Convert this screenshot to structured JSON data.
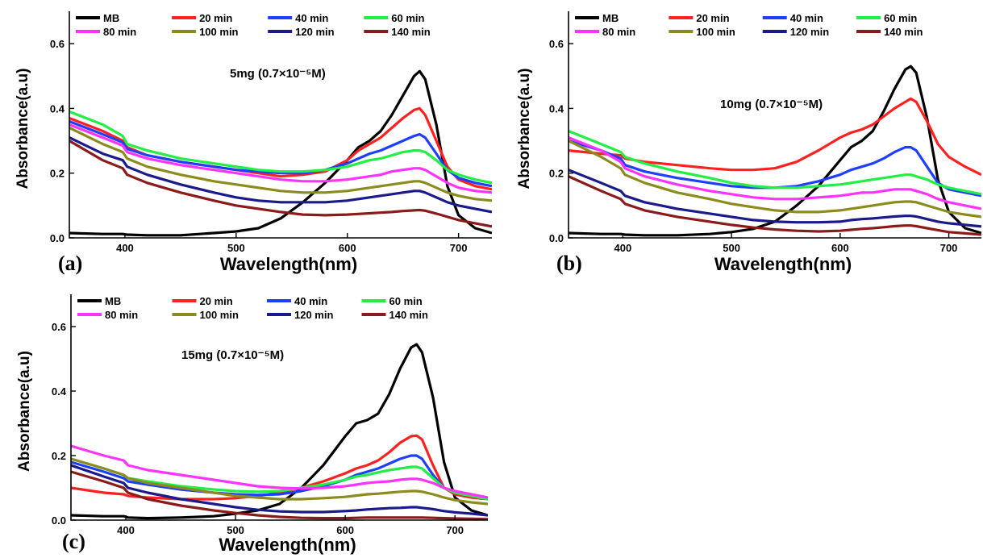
{
  "chart_data": [
    {
      "type": "line",
      "panel_label": "(a)",
      "annotation": "5mg",
      "concentration": "(0.7×10⁻⁵M)",
      "xlabel": "Wavelength(nm)",
      "ylabel": "Absorbance(a.u)",
      "xlim": [
        350,
        730
      ],
      "ylim": [
        0,
        0.7
      ],
      "xticks": [
        400,
        500,
        600,
        700
      ],
      "yticks": [
        0.0,
        0.2,
        0.4,
        0.6
      ],
      "x": [
        350,
        380,
        398,
        402,
        420,
        450,
        480,
        500,
        520,
        540,
        560,
        580,
        600,
        610,
        620,
        630,
        640,
        650,
        660,
        665,
        670,
        680,
        690,
        700,
        715,
        730
      ],
      "legend_rows": [
        [
          "MB",
          "20 min",
          "40 min",
          "60 min"
        ],
        [
          "80 min",
          "100 min",
          "120 min",
          "140 min"
        ]
      ],
      "series": [
        {
          "name": "MB",
          "color": "#000000",
          "values": [
            0.015,
            0.012,
            0.012,
            0.01,
            0.008,
            0.008,
            0.015,
            0.02,
            0.03,
            0.06,
            0.11,
            0.17,
            0.24,
            0.28,
            0.3,
            0.33,
            0.38,
            0.44,
            0.5,
            0.515,
            0.49,
            0.35,
            0.16,
            0.07,
            0.03,
            0.015
          ]
        },
        {
          "name": "20 min",
          "color": "#ff2020",
          "values": [
            0.37,
            0.33,
            0.3,
            0.28,
            0.255,
            0.235,
            0.22,
            0.21,
            0.2,
            0.19,
            0.195,
            0.205,
            0.24,
            0.27,
            0.29,
            0.31,
            0.34,
            0.37,
            0.395,
            0.4,
            0.38,
            0.3,
            0.22,
            0.18,
            0.16,
            0.15
          ]
        },
        {
          "name": "40 min",
          "color": "#1f3fff",
          "values": [
            0.36,
            0.32,
            0.295,
            0.275,
            0.255,
            0.235,
            0.22,
            0.21,
            0.205,
            0.2,
            0.2,
            0.21,
            0.23,
            0.245,
            0.26,
            0.27,
            0.285,
            0.3,
            0.315,
            0.32,
            0.31,
            0.26,
            0.21,
            0.185,
            0.17,
            0.16
          ]
        },
        {
          "name": "60 min",
          "color": "#22ee44",
          "values": [
            0.39,
            0.35,
            0.315,
            0.29,
            0.27,
            0.245,
            0.23,
            0.22,
            0.21,
            0.205,
            0.205,
            0.21,
            0.22,
            0.23,
            0.24,
            0.245,
            0.255,
            0.265,
            0.27,
            0.27,
            0.265,
            0.24,
            0.21,
            0.195,
            0.18,
            0.17
          ]
        },
        {
          "name": "80 min",
          "color": "#ff33ff",
          "values": [
            0.35,
            0.31,
            0.285,
            0.265,
            0.245,
            0.225,
            0.21,
            0.2,
            0.19,
            0.18,
            0.175,
            0.175,
            0.18,
            0.185,
            0.19,
            0.195,
            0.205,
            0.21,
            0.215,
            0.215,
            0.21,
            0.19,
            0.17,
            0.155,
            0.145,
            0.14
          ]
        },
        {
          "name": "100 min",
          "color": "#8c8c1e",
          "values": [
            0.34,
            0.29,
            0.265,
            0.245,
            0.22,
            0.195,
            0.175,
            0.165,
            0.155,
            0.145,
            0.14,
            0.14,
            0.145,
            0.15,
            0.155,
            0.16,
            0.165,
            0.17,
            0.175,
            0.175,
            0.17,
            0.155,
            0.14,
            0.13,
            0.12,
            0.115
          ]
        },
        {
          "name": "120 min",
          "color": "#1a1a8c",
          "values": [
            0.31,
            0.26,
            0.24,
            0.22,
            0.195,
            0.165,
            0.14,
            0.125,
            0.115,
            0.11,
            0.11,
            0.11,
            0.115,
            0.12,
            0.125,
            0.13,
            0.135,
            0.14,
            0.145,
            0.145,
            0.14,
            0.125,
            0.11,
            0.1,
            0.09,
            0.08
          ]
        },
        {
          "name": "140 min",
          "color": "#8b1a1a",
          "values": [
            0.3,
            0.24,
            0.215,
            0.195,
            0.17,
            0.14,
            0.115,
            0.1,
            0.09,
            0.08,
            0.072,
            0.07,
            0.072,
            0.074,
            0.076,
            0.078,
            0.08,
            0.083,
            0.085,
            0.086,
            0.084,
            0.075,
            0.065,
            0.055,
            0.045,
            0.035
          ]
        }
      ]
    },
    {
      "type": "line",
      "panel_label": "(b)",
      "annotation": "10mg",
      "concentration": "(0.7×10⁻⁵M)",
      "xlabel": "Wavelength(nm)",
      "ylabel": "Absorbance(a.u)",
      "xlim": [
        350,
        730
      ],
      "ylim": [
        0,
        0.7
      ],
      "xticks": [
        400,
        500,
        600,
        700
      ],
      "yticks": [
        0.0,
        0.2,
        0.4,
        0.6
      ],
      "x": [
        350,
        380,
        398,
        402,
        420,
        450,
        480,
        500,
        520,
        540,
        560,
        580,
        600,
        610,
        620,
        630,
        640,
        650,
        660,
        665,
        670,
        680,
        690,
        700,
        715,
        730
      ],
      "legend_rows": [
        [
          "MB",
          "20 min",
          "40 min",
          "60 min"
        ],
        [
          "80 min",
          "100 min",
          "120 min",
          "140 min"
        ]
      ],
      "series": [
        {
          "name": "MB",
          "color": "#000000",
          "values": [
            0.015,
            0.012,
            0.012,
            0.01,
            0.008,
            0.008,
            0.012,
            0.018,
            0.028,
            0.05,
            0.1,
            0.16,
            0.24,
            0.28,
            0.3,
            0.33,
            0.39,
            0.46,
            0.52,
            0.53,
            0.51,
            0.37,
            0.18,
            0.08,
            0.03,
            0.015
          ]
        },
        {
          "name": "20 min",
          "color": "#ff2020",
          "values": [
            0.27,
            0.26,
            0.255,
            0.245,
            0.235,
            0.225,
            0.215,
            0.21,
            0.21,
            0.215,
            0.235,
            0.27,
            0.31,
            0.325,
            0.335,
            0.35,
            0.375,
            0.4,
            0.42,
            0.43,
            0.42,
            0.36,
            0.29,
            0.25,
            0.22,
            0.195
          ]
        },
        {
          "name": "40 min",
          "color": "#1f3fff",
          "values": [
            0.3,
            0.27,
            0.245,
            0.225,
            0.205,
            0.185,
            0.17,
            0.16,
            0.155,
            0.155,
            0.16,
            0.175,
            0.195,
            0.21,
            0.22,
            0.23,
            0.245,
            0.265,
            0.28,
            0.28,
            0.27,
            0.22,
            0.17,
            0.15,
            0.14,
            0.13
          ]
        },
        {
          "name": "60 min",
          "color": "#22ee44",
          "values": [
            0.33,
            0.29,
            0.265,
            0.25,
            0.23,
            0.205,
            0.185,
            0.17,
            0.16,
            0.155,
            0.155,
            0.16,
            0.165,
            0.17,
            0.175,
            0.18,
            0.185,
            0.19,
            0.195,
            0.195,
            0.19,
            0.18,
            0.165,
            0.155,
            0.145,
            0.135
          ]
        },
        {
          "name": "80 min",
          "color": "#ff33ff",
          "values": [
            0.31,
            0.27,
            0.235,
            0.215,
            0.19,
            0.165,
            0.145,
            0.135,
            0.125,
            0.12,
            0.12,
            0.125,
            0.13,
            0.135,
            0.14,
            0.14,
            0.145,
            0.15,
            0.15,
            0.15,
            0.145,
            0.135,
            0.12,
            0.11,
            0.1,
            0.09
          ]
        },
        {
          "name": "100 min",
          "color": "#8c8c1e",
          "values": [
            0.3,
            0.25,
            0.215,
            0.195,
            0.17,
            0.14,
            0.12,
            0.105,
            0.095,
            0.085,
            0.08,
            0.08,
            0.085,
            0.09,
            0.095,
            0.1,
            0.105,
            0.11,
            0.112,
            0.112,
            0.11,
            0.1,
            0.09,
            0.08,
            0.072,
            0.065
          ]
        },
        {
          "name": "120 min",
          "color": "#1a1a8c",
          "values": [
            0.21,
            0.17,
            0.145,
            0.13,
            0.11,
            0.09,
            0.075,
            0.065,
            0.055,
            0.05,
            0.048,
            0.048,
            0.05,
            0.055,
            0.058,
            0.06,
            0.063,
            0.066,
            0.068,
            0.068,
            0.066,
            0.058,
            0.05,
            0.045,
            0.04,
            0.035
          ]
        },
        {
          "name": "140 min",
          "color": "#8b1a1a",
          "values": [
            0.19,
            0.145,
            0.12,
            0.105,
            0.085,
            0.065,
            0.05,
            0.04,
            0.032,
            0.026,
            0.022,
            0.02,
            0.022,
            0.025,
            0.028,
            0.03,
            0.033,
            0.036,
            0.038,
            0.038,
            0.036,
            0.03,
            0.024,
            0.018,
            0.014,
            0.01
          ]
        }
      ]
    },
    {
      "type": "line",
      "panel_label": "(c)",
      "annotation": "15mg",
      "concentration": "(0.7×10⁻⁵M)",
      "xlabel": "Wavelength(nm)",
      "ylabel": "Absorbance(a.u)",
      "xlim": [
        350,
        730
      ],
      "ylim": [
        0,
        0.7
      ],
      "xticks": [
        400,
        500,
        600,
        700
      ],
      "yticks": [
        0.0,
        0.2,
        0.4,
        0.6
      ],
      "x": [
        350,
        380,
        398,
        402,
        420,
        450,
        480,
        500,
        520,
        540,
        560,
        580,
        600,
        610,
        620,
        630,
        640,
        650,
        660,
        665,
        670,
        680,
        690,
        700,
        715,
        730
      ],
      "legend_rows": [
        [
          "MB",
          "20 min",
          "40 min",
          "60 min"
        ],
        [
          "80 min",
          "100 min",
          "120 min",
          "140 min"
        ]
      ],
      "series": [
        {
          "name": "MB",
          "color": "#000000",
          "values": [
            0.015,
            0.012,
            0.012,
            0.008,
            0.006,
            0.008,
            0.012,
            0.02,
            0.03,
            0.05,
            0.1,
            0.17,
            0.26,
            0.3,
            0.31,
            0.33,
            0.39,
            0.47,
            0.535,
            0.545,
            0.52,
            0.38,
            0.18,
            0.07,
            0.03,
            0.015
          ]
        },
        {
          "name": "20 min",
          "color": "#ff2020",
          "values": [
            0.1,
            0.085,
            0.08,
            0.075,
            0.07,
            0.065,
            0.065,
            0.068,
            0.075,
            0.085,
            0.1,
            0.12,
            0.145,
            0.16,
            0.17,
            0.185,
            0.21,
            0.24,
            0.26,
            0.262,
            0.25,
            0.17,
            0.1,
            0.08,
            0.07,
            0.065
          ]
        },
        {
          "name": "40 min",
          "color": "#1f3fff",
          "values": [
            0.18,
            0.15,
            0.13,
            0.12,
            0.11,
            0.095,
            0.085,
            0.08,
            0.078,
            0.08,
            0.09,
            0.105,
            0.125,
            0.14,
            0.15,
            0.16,
            0.175,
            0.19,
            0.2,
            0.2,
            0.19,
            0.14,
            0.1,
            0.085,
            0.075,
            0.065
          ]
        },
        {
          "name": "60 min",
          "color": "#22ee44",
          "values": [
            0.19,
            0.16,
            0.14,
            0.13,
            0.12,
            0.105,
            0.095,
            0.09,
            0.088,
            0.09,
            0.1,
            0.11,
            0.125,
            0.135,
            0.14,
            0.148,
            0.155,
            0.16,
            0.165,
            0.165,
            0.16,
            0.13,
            0.1,
            0.085,
            0.075,
            0.065
          ]
        },
        {
          "name": "80 min",
          "color": "#ff33ff",
          "values": [
            0.23,
            0.2,
            0.185,
            0.17,
            0.155,
            0.14,
            0.125,
            0.115,
            0.105,
            0.1,
            0.098,
            0.1,
            0.105,
            0.11,
            0.115,
            0.118,
            0.12,
            0.125,
            0.128,
            0.128,
            0.125,
            0.115,
            0.1,
            0.09,
            0.08,
            0.07
          ]
        },
        {
          "name": "100 min",
          "color": "#8c8c1e",
          "values": [
            0.19,
            0.16,
            0.14,
            0.13,
            0.115,
            0.1,
            0.085,
            0.075,
            0.07,
            0.065,
            0.065,
            0.068,
            0.072,
            0.076,
            0.08,
            0.082,
            0.085,
            0.088,
            0.09,
            0.09,
            0.088,
            0.08,
            0.07,
            0.062,
            0.055,
            0.05
          ]
        },
        {
          "name": "120 min",
          "color": "#1a1a8c",
          "values": [
            0.17,
            0.135,
            0.115,
            0.1,
            0.085,
            0.065,
            0.05,
            0.04,
            0.032,
            0.027,
            0.025,
            0.025,
            0.028,
            0.03,
            0.033,
            0.035,
            0.037,
            0.038,
            0.04,
            0.04,
            0.038,
            0.034,
            0.028,
            0.024,
            0.02,
            0.015
          ]
        },
        {
          "name": "140 min",
          "color": "#8b1a1a",
          "values": [
            0.15,
            0.12,
            0.1,
            0.085,
            0.065,
            0.045,
            0.03,
            0.022,
            0.015,
            0.01,
            0.007,
            0.006,
            0.006,
            0.007,
            0.008,
            0.008,
            0.008,
            0.008,
            0.008,
            0.008,
            0.008,
            0.007,
            0.006,
            0.005,
            0.004,
            0.003
          ]
        }
      ]
    }
  ]
}
